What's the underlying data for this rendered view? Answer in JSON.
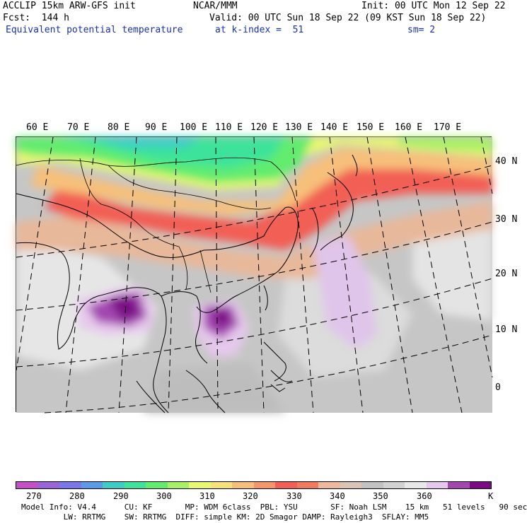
{
  "header": {
    "model": "ACCLIP 15km ARW-GFS init",
    "org": "NCAR/MMM",
    "init": "Init: 00 UTC Mon 12 Sep 22",
    "fcst": "Fcst:  144 h",
    "valid": "Valid: 00 UTC Sun 18 Sep 22 (09 KST Sun 18 Sep 22)",
    "field": "Equivalent potential temperature",
    "level": "at k-index =  51",
    "smooth": "sm= 2"
  },
  "map": {
    "lon_labels": [
      "60 E",
      "70 E",
      "80 E",
      "90 E",
      "100 E",
      "110 E",
      "120 E",
      "130 E",
      "140 E",
      "150 E",
      "160 E",
      "170 E"
    ],
    "lat_labels": [
      "40 N",
      "30 N",
      "20 N",
      "10 N",
      "0"
    ]
  },
  "colorbar": {
    "unit": "K",
    "tick_labels": [
      "270",
      "280",
      "290",
      "300",
      "310",
      "320",
      "330",
      "340",
      "350",
      "360"
    ],
    "colors": [
      "#c64fc8",
      "#9b63d8",
      "#7a78e8",
      "#5b9ae6",
      "#3ecdc6",
      "#3de39a",
      "#62ec6e",
      "#a8f066",
      "#e8f870",
      "#f7e17a",
      "#f6c07a",
      "#f4956a",
      "#f25f55",
      "#ef7a5e",
      "#f0b89a",
      "#d9c4b5",
      "#c2c2c2",
      "#d2d2d2",
      "#e8e8e8",
      "#e6c8ec",
      "#a346b0",
      "#7a0b84"
    ]
  },
  "footer": {
    "line1": "Model Info: V4.4      CU: KF       MP: WDM 6class  PBL: YSU       SF: Noah LSM    15 km   51 levels   90 sec",
    "line2": "         LW: RRTMG    SW: RRTMG  DIFF: simple KM: 2D Smagor DAMP: Rayleigh3  SFLAY: MM5"
  }
}
